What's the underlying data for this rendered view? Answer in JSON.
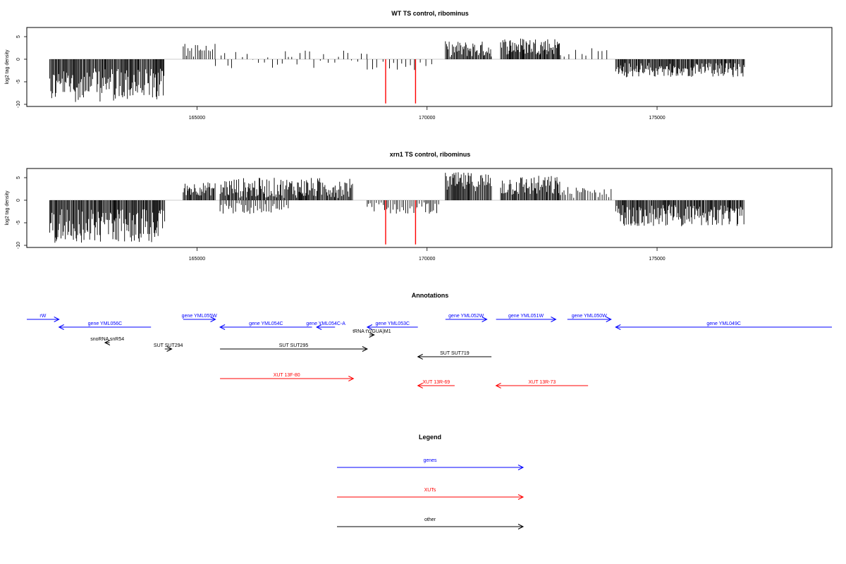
{
  "panels": [
    {
      "title": "WT TS control, ribominus",
      "ylabel": "log2 tag density"
    },
    {
      "title": "xrn1 TS control, ribominus",
      "ylabel": "log2 tag density"
    }
  ],
  "annotations_title": "Annotations",
  "legend": {
    "title": "Legend",
    "items": [
      {
        "label": "genes",
        "color": "#0000ff"
      },
      {
        "label": "XUTs",
        "color": "#ff0000"
      },
      {
        "label": "other",
        "color": "#000000"
      }
    ]
  },
  "chart_data": [
    {
      "type": "bar",
      "title": "WT TS control, ribominus",
      "xlabel": "",
      "ylabel": "log2 tag density",
      "xlim": [
        161300,
        178800
      ],
      "ylim": [
        -10,
        7
      ],
      "x_ticks": [
        165000,
        170000,
        175000
      ],
      "y_ticks": [
        -10,
        -5,
        0,
        5
      ],
      "grid": false,
      "signal_blocks": [
        {
          "start": 161800,
          "end": 164300,
          "strand": "minus",
          "min": -9.5,
          "max": -2,
          "density": "high"
        },
        {
          "start": 164700,
          "end": 165400,
          "strand": "plus",
          "min": 0.5,
          "max": 3.5,
          "density": "medium"
        },
        {
          "start": 165400,
          "end": 168700,
          "strand": "both",
          "min": -2,
          "max": 2,
          "density": "sparse"
        },
        {
          "start": 168700,
          "end": 170200,
          "strand": "minus",
          "min": -2.5,
          "max": -0.5,
          "density": "sparse"
        },
        {
          "start": 170400,
          "end": 171400,
          "strand": "plus",
          "min": 0.5,
          "max": 4,
          "density": "high"
        },
        {
          "start": 171600,
          "end": 172900,
          "strand": "plus",
          "min": 1,
          "max": 4.8,
          "density": "high"
        },
        {
          "start": 172900,
          "end": 174000,
          "strand": "plus",
          "min": 0.5,
          "max": 2.5,
          "density": "sparse"
        },
        {
          "start": 174100,
          "end": 176900,
          "strand": "minus",
          "min": -4,
          "max": -0.8,
          "density": "high"
        }
      ],
      "highlights": [
        {
          "x": 169100,
          "y": -9.8,
          "color": "#ff0000"
        },
        {
          "x": 169750,
          "y": -9.8,
          "color": "#ff0000"
        }
      ]
    },
    {
      "type": "bar",
      "title": "xrn1 TS control, ribominus",
      "xlabel": "",
      "ylabel": "log2 tag density",
      "xlim": [
        161300,
        178800
      ],
      "ylim": [
        -10,
        7
      ],
      "x_ticks": [
        165000,
        170000,
        175000
      ],
      "y_ticks": [
        -10,
        -5,
        0,
        5
      ],
      "grid": false,
      "signal_blocks": [
        {
          "start": 161800,
          "end": 164300,
          "strand": "minus",
          "min": -9.5,
          "max": -2,
          "density": "high"
        },
        {
          "start": 164700,
          "end": 165400,
          "strand": "plus",
          "min": 1,
          "max": 4,
          "density": "high"
        },
        {
          "start": 165500,
          "end": 168400,
          "strand": "plus",
          "min": 0.5,
          "max": 5,
          "density": "high"
        },
        {
          "start": 165500,
          "end": 167000,
          "strand": "minus",
          "min": -3,
          "max": -0.5,
          "density": "medium"
        },
        {
          "start": 168700,
          "end": 170300,
          "strand": "minus",
          "min": -3,
          "max": -0.5,
          "density": "medium"
        },
        {
          "start": 170400,
          "end": 171400,
          "strand": "plus",
          "min": 2,
          "max": 6.2,
          "density": "high"
        },
        {
          "start": 171600,
          "end": 172900,
          "strand": "plus",
          "min": 1,
          "max": 5.5,
          "density": "high"
        },
        {
          "start": 172900,
          "end": 174000,
          "strand": "plus",
          "min": 0.5,
          "max": 3,
          "density": "medium"
        },
        {
          "start": 174100,
          "end": 176900,
          "strand": "minus",
          "min": -5.8,
          "max": -1,
          "density": "high"
        }
      ],
      "highlights": [
        {
          "x": 169100,
          "y": -9.8,
          "color": "#ff0000"
        },
        {
          "x": 169750,
          "y": -9.8,
          "color": "#ff0000"
        }
      ]
    },
    {
      "type": "annotation_track",
      "title": "Annotations",
      "features": [
        {
          "label": "rW",
          "kind": "gene",
          "strand": "+",
          "start": 161300,
          "end": 162000,
          "row": 0
        },
        {
          "label": "gene YML056C",
          "kind": "gene",
          "strand": "-",
          "start": 162000,
          "end": 164000,
          "row": 1
        },
        {
          "label": "gene YML055W",
          "kind": "gene",
          "strand": "+",
          "start": 164700,
          "end": 165400,
          "row": 0
        },
        {
          "label": "gene YML054C",
          "kind": "gene",
          "strand": "-",
          "start": 165500,
          "end": 167500,
          "row": 1
        },
        {
          "label": "gene YML054C-A",
          "kind": "gene",
          "strand": "-",
          "start": 167600,
          "end": 168000,
          "row": 1
        },
        {
          "label": "gene YML053C",
          "kind": "gene",
          "strand": "-",
          "start": 168700,
          "end": 169800,
          "row": 1
        },
        {
          "label": "gene YML052W",
          "kind": "gene",
          "strand": "+",
          "start": 170400,
          "end": 171300,
          "row": 0
        },
        {
          "label": "gene YML051W",
          "kind": "gene",
          "strand": "+",
          "start": 171500,
          "end": 172800,
          "row": 0
        },
        {
          "label": "gene YML050W",
          "kind": "gene",
          "strand": "+",
          "start": 173050,
          "end": 174000,
          "row": 0
        },
        {
          "label": "gene YML049C",
          "kind": "gene",
          "strand": "-",
          "start": 174100,
          "end": 178800,
          "row": 1
        },
        {
          "label": "tRNA tY(GUA)M1",
          "kind": "other",
          "strand": "+",
          "start": 168750,
          "end": 168850,
          "row": 2
        },
        {
          "label": "snoRNA snR54",
          "kind": "other",
          "strand": "-",
          "start": 163000,
          "end": 163100,
          "row": 3
        },
        {
          "label": "SUT SUT294",
          "kind": "other",
          "strand": "+",
          "start": 164300,
          "end": 164450,
          "row": 4
        },
        {
          "label": "SUT SUT295",
          "kind": "other",
          "strand": "+",
          "start": 165500,
          "end": 168700,
          "row": 4
        },
        {
          "label": "SUT SUT719",
          "kind": "other",
          "strand": "-",
          "start": 169800,
          "end": 171400,
          "row": 5
        },
        {
          "label": "XUT 13F-80",
          "kind": "XUT",
          "strand": "+",
          "start": 165500,
          "end": 168400,
          "row": 7
        },
        {
          "label": "XUT 13R-69",
          "kind": "XUT",
          "strand": "-",
          "start": 169800,
          "end": 170600,
          "row": 8
        },
        {
          "label": "XUT 13R-73",
          "kind": "XUT",
          "strand": "-",
          "start": 171500,
          "end": 173500,
          "row": 8
        }
      ]
    }
  ]
}
